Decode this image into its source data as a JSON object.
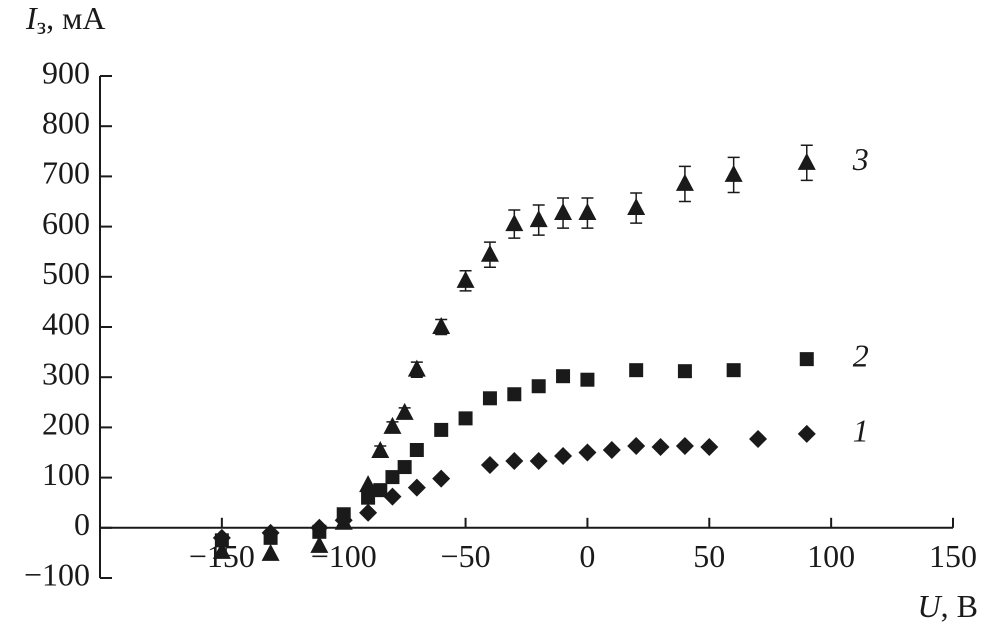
{
  "chart_data": {
    "type": "scatter",
    "ylabel": {
      "symbol": "I",
      "subscript": "з",
      "unit": ", мА"
    },
    "xlabel": {
      "symbol": "U",
      "unit": ", В"
    },
    "xlim": [
      -200,
      150
    ],
    "xticks": [
      {
        "value": -150,
        "label": "−150"
      },
      {
        "value": -100,
        "label": "−100"
      },
      {
        "value": -50,
        "label": "−50"
      },
      0,
      50,
      100,
      150
    ],
    "ylim": [
      -100,
      900
    ],
    "yticks": [
      {
        "value": -100,
        "label": "−100"
      },
      0,
      100,
      200,
      300,
      400,
      500,
      600,
      700,
      800,
      900
    ],
    "series": [
      {
        "name": "1",
        "marker": "diamond",
        "color": "#1a1a1a",
        "x": [
          -150,
          -130,
          -110,
          -100,
          -90,
          -80,
          -70,
          -60,
          -40,
          -30,
          -20,
          -10,
          0,
          10,
          20,
          30,
          40,
          50,
          70,
          90
        ],
        "values": [
          -20,
          -10,
          0,
          15,
          30,
          62,
          80,
          98,
          125,
          133,
          133,
          143,
          150,
          155,
          163,
          161,
          163,
          161,
          177,
          187
        ]
      },
      {
        "name": "2",
        "marker": "square",
        "color": "#1a1a1a",
        "x": [
          -150,
          -130,
          -110,
          -100,
          -90,
          -85,
          -80,
          -75,
          -70,
          -60,
          -50,
          -40,
          -30,
          -20,
          -10,
          0,
          20,
          40,
          60,
          90
        ],
        "values": [
          -25,
          -20,
          -8,
          27,
          60,
          75,
          101,
          121,
          155,
          195,
          218,
          258,
          266,
          282,
          302,
          295,
          314,
          312,
          314,
          336
        ]
      },
      {
        "name": "3",
        "marker": "triangle",
        "color": "#1a1a1a",
        "x": [
          -150,
          -130,
          -110,
          -100,
          -90,
          -85,
          -80,
          -75,
          -70,
          -60,
          -50,
          -40,
          -30,
          -20,
          -10,
          0,
          20,
          40,
          60,
          90
        ],
        "values": [
          -48,
          -52,
          -36,
          10,
          85,
          153,
          201,
          229,
          315,
          400,
          492,
          544,
          605,
          613,
          627,
          627,
          637,
          685,
          703,
          727
        ],
        "errors": [
          null,
          null,
          null,
          null,
          null,
          10,
          10,
          10,
          15,
          15,
          20,
          25,
          28,
          30,
          30,
          30,
          30,
          35,
          35,
          35
        ]
      }
    ]
  }
}
